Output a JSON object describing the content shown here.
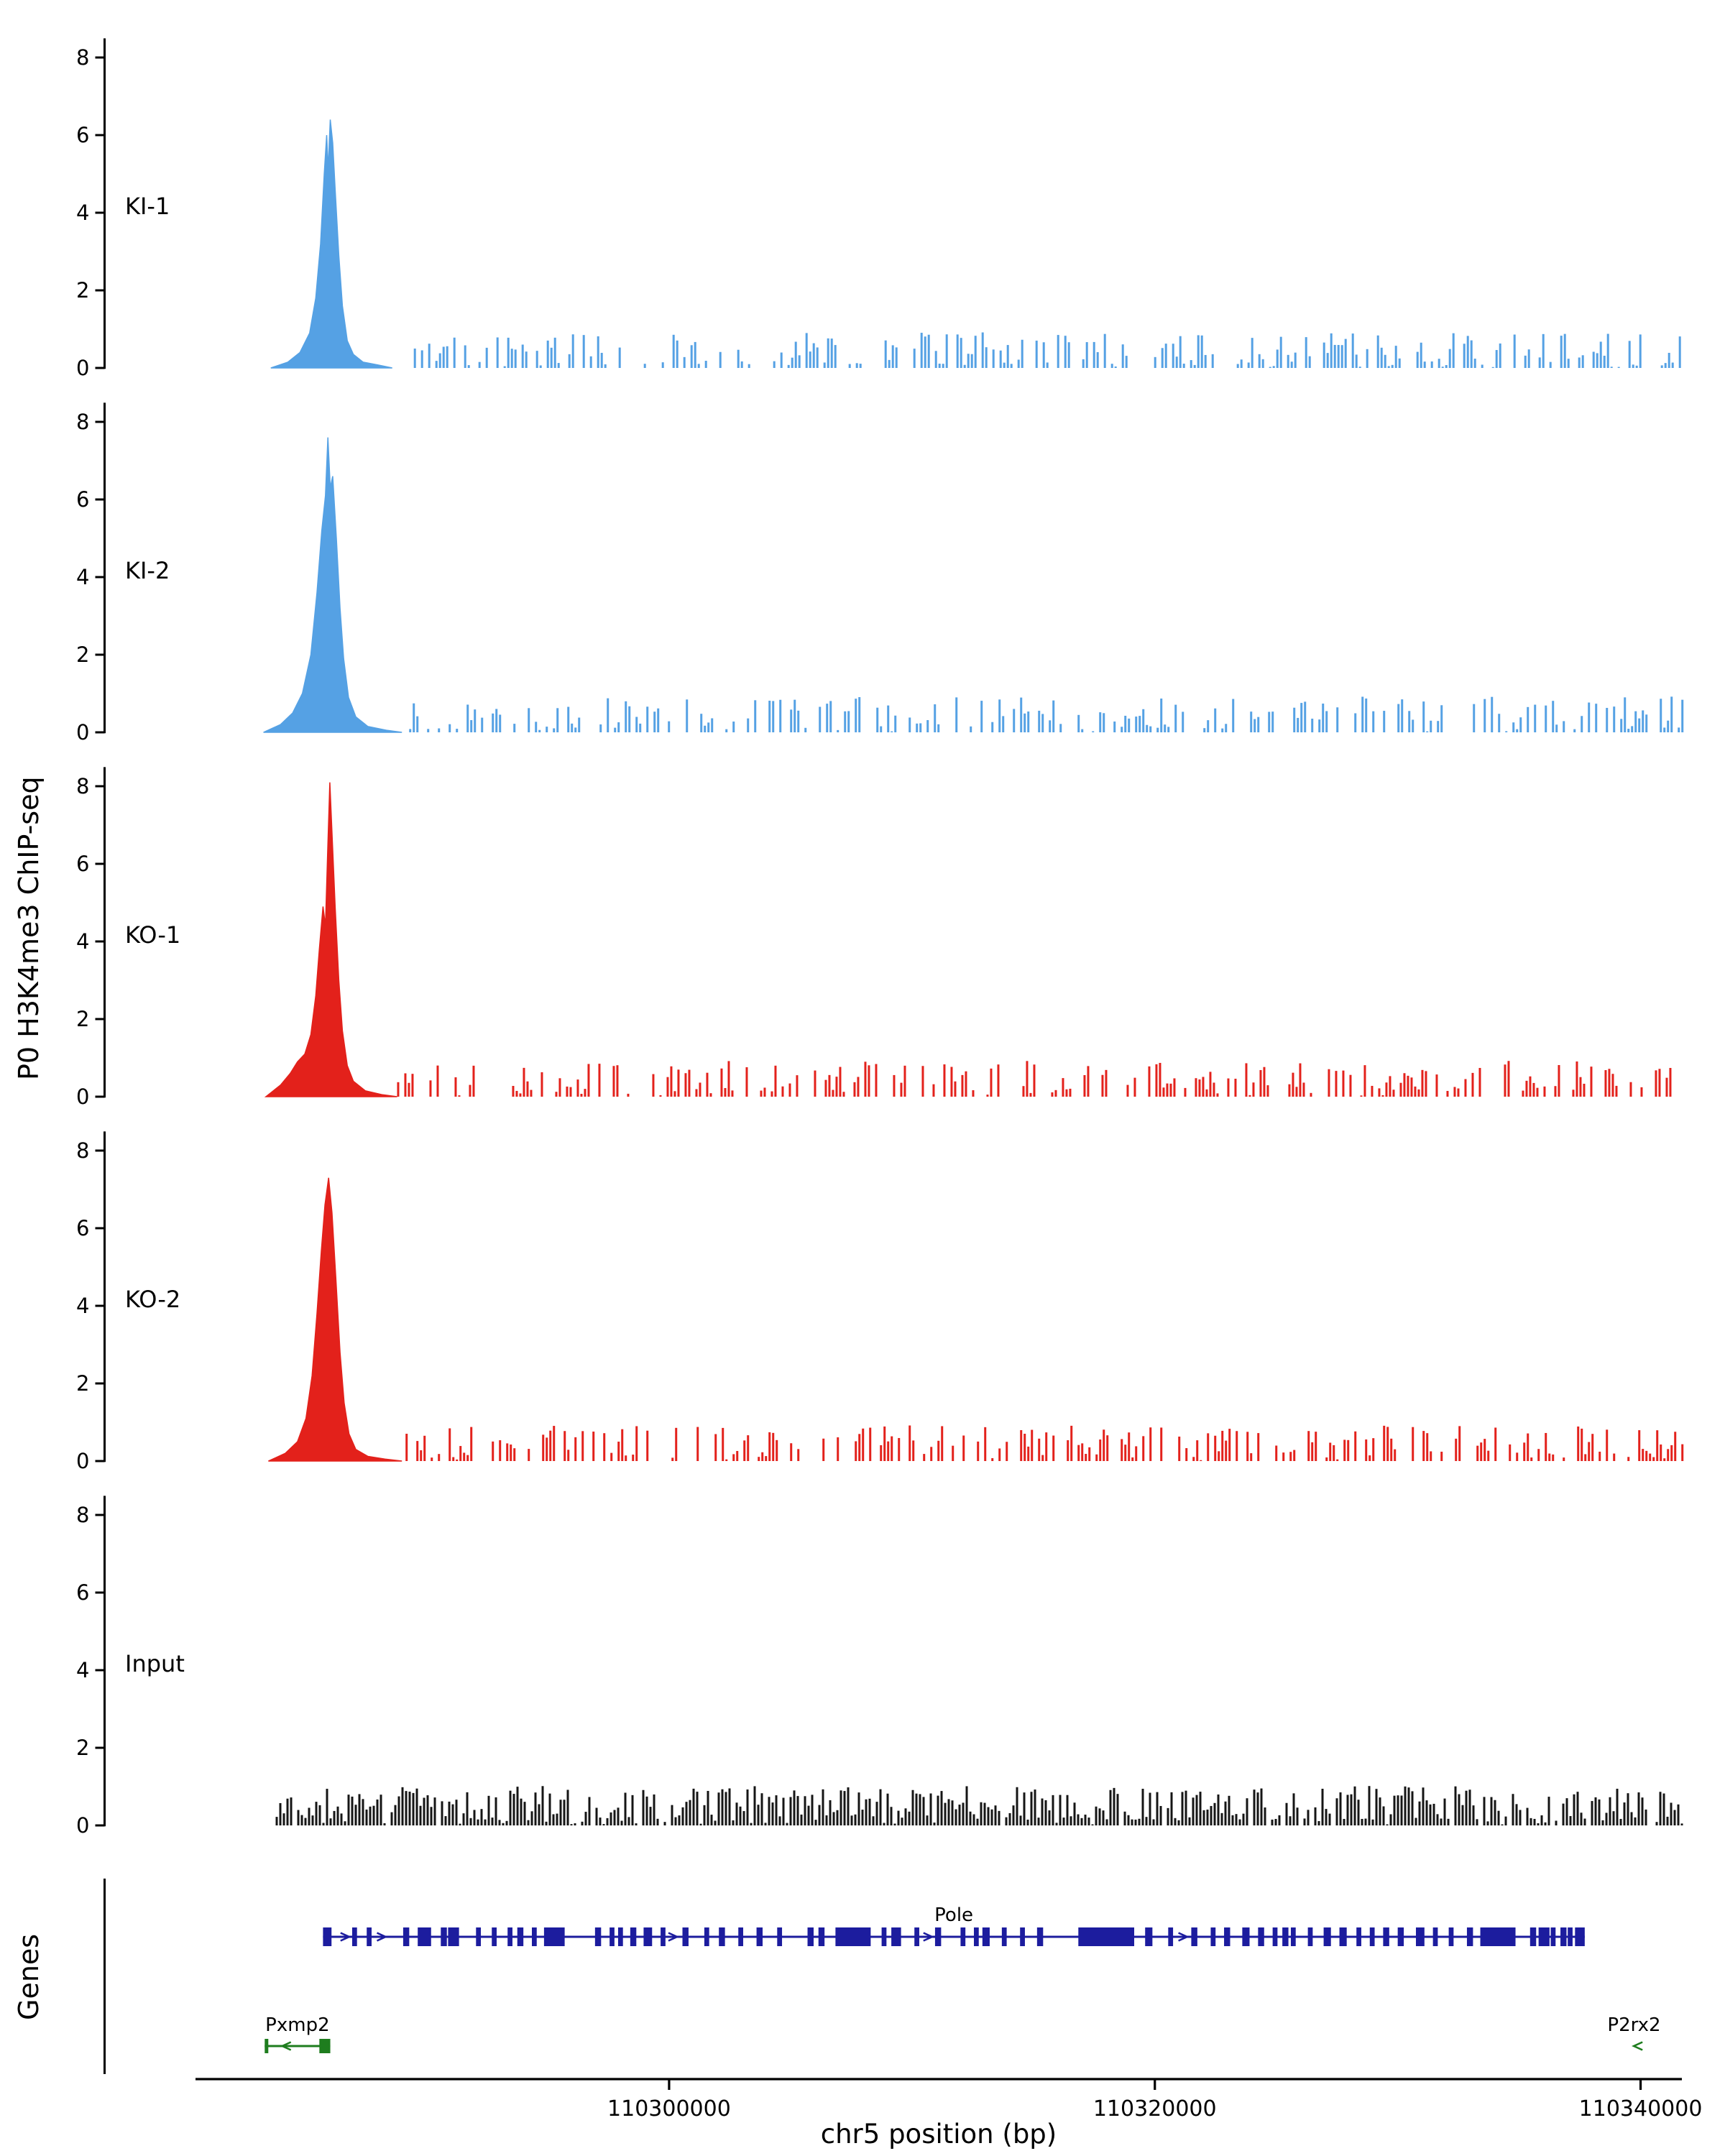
{
  "chart_data": {
    "type": "area",
    "title": "",
    "xlabel": "chr5 position (bp)",
    "ylabel": "P0 H3K4me3 ChIP-seq",
    "genes_axis_label": "Genes",
    "xlim": [
      110280500,
      110341700
    ],
    "x_ticks": [
      110300000,
      110320000,
      110340000
    ],
    "ylim": [
      0,
      8.5
    ],
    "y_ticks": [
      0,
      2,
      4,
      6,
      8
    ],
    "tracks": [
      {
        "label": "KI-1",
        "color": "#55a1e4",
        "peak": [
          [
            110283600,
            0.0
          ],
          [
            110284300,
            0.15
          ],
          [
            110284800,
            0.4
          ],
          [
            110285200,
            0.9
          ],
          [
            110285450,
            1.8
          ],
          [
            110285650,
            3.2
          ],
          [
            110285800,
            5.0
          ],
          [
            110285900,
            6.0
          ],
          [
            110285960,
            5.1
          ],
          [
            110286050,
            6.4
          ],
          [
            110286150,
            5.8
          ],
          [
            110286250,
            4.6
          ],
          [
            110286400,
            2.9
          ],
          [
            110286550,
            1.6
          ],
          [
            110286750,
            0.7
          ],
          [
            110287000,
            0.35
          ],
          [
            110287400,
            0.15
          ],
          [
            110288000,
            0.08
          ],
          [
            110288600,
            0.0
          ]
        ],
        "noise": {
          "start": 110288600,
          "density": 0.5,
          "amp": 0.09
        }
      },
      {
        "label": "KI-2",
        "color": "#55a1e4",
        "peak": [
          [
            110283300,
            0.0
          ],
          [
            110284000,
            0.2
          ],
          [
            110284500,
            0.5
          ],
          [
            110284900,
            1.0
          ],
          [
            110285250,
            2.0
          ],
          [
            110285500,
            3.6
          ],
          [
            110285700,
            5.2
          ],
          [
            110285850,
            6.1
          ],
          [
            110285950,
            7.6
          ],
          [
            110286050,
            6.3
          ],
          [
            110286150,
            6.6
          ],
          [
            110286300,
            5.0
          ],
          [
            110286450,
            3.2
          ],
          [
            110286600,
            1.9
          ],
          [
            110286800,
            0.9
          ],
          [
            110287100,
            0.4
          ],
          [
            110287600,
            0.15
          ],
          [
            110288400,
            0.05
          ],
          [
            110289000,
            0.0
          ]
        ],
        "noise": {
          "start": 110289000,
          "density": 0.5,
          "amp": 0.09
        }
      },
      {
        "label": "KO-1",
        "color": "#e3211b",
        "peak": [
          [
            110283400,
            0.0
          ],
          [
            110284000,
            0.3
          ],
          [
            110284400,
            0.6
          ],
          [
            110284700,
            0.9
          ],
          [
            110285000,
            1.1
          ],
          [
            110285250,
            1.6
          ],
          [
            110285450,
            2.6
          ],
          [
            110285600,
            3.8
          ],
          [
            110285750,
            4.9
          ],
          [
            110285850,
            4.4
          ],
          [
            110285950,
            6.5
          ],
          [
            110286030,
            8.1
          ],
          [
            110286120,
            6.8
          ],
          [
            110286250,
            4.9
          ],
          [
            110286400,
            3.0
          ],
          [
            110286550,
            1.7
          ],
          [
            110286750,
            0.8
          ],
          [
            110287000,
            0.4
          ],
          [
            110287500,
            0.15
          ],
          [
            110288200,
            0.05
          ],
          [
            110288800,
            0.0
          ]
        ],
        "noise": {
          "start": 110288800,
          "density": 0.5,
          "amp": 0.09
        }
      },
      {
        "label": "KO-2",
        "color": "#e3211b",
        "peak": [
          [
            110283500,
            0.0
          ],
          [
            110284200,
            0.2
          ],
          [
            110284700,
            0.5
          ],
          [
            110285050,
            1.1
          ],
          [
            110285300,
            2.2
          ],
          [
            110285500,
            3.8
          ],
          [
            110285680,
            5.4
          ],
          [
            110285830,
            6.6
          ],
          [
            110285980,
            7.3
          ],
          [
            110286120,
            6.4
          ],
          [
            110286280,
            4.7
          ],
          [
            110286450,
            2.8
          ],
          [
            110286620,
            1.5
          ],
          [
            110286820,
            0.7
          ],
          [
            110287100,
            0.3
          ],
          [
            110287600,
            0.12
          ],
          [
            110288300,
            0.05
          ],
          [
            110289000,
            0.0
          ]
        ],
        "noise": {
          "start": 110289000,
          "density": 0.5,
          "amp": 0.09
        }
      },
      {
        "label": "Input",
        "color": "#151515",
        "peak": [],
        "noise": {
          "start": 110283800,
          "density": 0.95,
          "amp": 0.1
        }
      }
    ],
    "genes": {
      "pole": {
        "name": "Pole",
        "color": "#1c1c9e",
        "strand": "+",
        "start": 110285750,
        "end": 110337700,
        "exons": [
          [
            110285750,
            350
          ],
          [
            110286950,
            200
          ],
          [
            110287550,
            200
          ],
          [
            110289050,
            250
          ],
          [
            110289650,
            550
          ],
          [
            110290600,
            250
          ],
          [
            110290900,
            450
          ],
          [
            110292050,
            200
          ],
          [
            110292700,
            200
          ],
          [
            110293350,
            200
          ],
          [
            110293750,
            250
          ],
          [
            110294350,
            200
          ],
          [
            110294850,
            800
          ],
          [
            110295500,
            200
          ],
          [
            110296950,
            250
          ],
          [
            110297550,
            200
          ],
          [
            110297900,
            200
          ],
          [
            110298400,
            250
          ],
          [
            110298950,
            350
          ],
          [
            110299650,
            200
          ],
          [
            110300550,
            250
          ],
          [
            110301450,
            200
          ],
          [
            110302050,
            250
          ],
          [
            110302850,
            200
          ],
          [
            110303600,
            250
          ],
          [
            110304450,
            200
          ],
          [
            110305700,
            250
          ],
          [
            110306150,
            250
          ],
          [
            110306850,
            1450
          ],
          [
            110308750,
            200
          ],
          [
            110309150,
            400
          ],
          [
            110310100,
            200
          ],
          [
            110310950,
            250
          ],
          [
            110312000,
            200
          ],
          [
            110312550,
            200
          ],
          [
            110312900,
            300
          ],
          [
            110313700,
            200
          ],
          [
            110314450,
            200
          ],
          [
            110315150,
            250
          ],
          [
            110316850,
            2300
          ],
          [
            110319600,
            300
          ],
          [
            110320550,
            200
          ],
          [
            110321500,
            250
          ],
          [
            110322300,
            200
          ],
          [
            110322850,
            250
          ],
          [
            110323600,
            300
          ],
          [
            110324250,
            250
          ],
          [
            110324850,
            200
          ],
          [
            110325250,
            250
          ],
          [
            110325600,
            200
          ],
          [
            110326300,
            200
          ],
          [
            110326950,
            300
          ],
          [
            110327600,
            300
          ],
          [
            110328300,
            200
          ],
          [
            110328850,
            200
          ],
          [
            110329400,
            250
          ],
          [
            110330000,
            250
          ],
          [
            110330750,
            350
          ],
          [
            110331450,
            200
          ],
          [
            110332100,
            200
          ],
          [
            110332850,
            250
          ],
          [
            110333400,
            1450
          ],
          [
            110335450,
            250
          ],
          [
            110335800,
            450
          ],
          [
            110336300,
            200
          ],
          [
            110336700,
            250
          ],
          [
            110337000,
            200
          ],
          [
            110337300,
            400
          ]
        ]
      },
      "pxmp2": {
        "name": "Pxmp2",
        "color": "#1e7d1e",
        "strand": "-",
        "start": 110283350,
        "end": 110286050,
        "exons": [
          [
            110283350,
            120
          ],
          [
            110285600,
            450
          ]
        ]
      },
      "p2rx2": {
        "name": "P2rx2",
        "color": "#1e7d1e",
        "strand": "-",
        "start": 110339850,
        "end": 110341700,
        "exons": []
      }
    }
  }
}
